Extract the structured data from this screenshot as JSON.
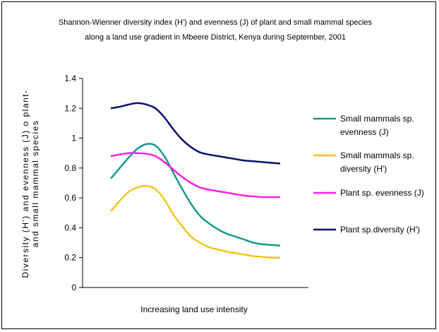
{
  "chart_data": {
    "type": "line",
    "title_lines": [
      "Shannon-Wienner diversity index (H') and evenness (J) of plant and small mammal species",
      "along a land use gradient in Mbeere District, Kenya during September, 2001"
    ],
    "xlabel": "Increasing land use intensity",
    "ylabel_lines": [
      "Diversity (H') and evenness (J) o plant-",
      "and small mammal species"
    ],
    "ylim": [
      0,
      1.4
    ],
    "yticks": [
      "0",
      "0.2",
      "0.4",
      "0.6",
      "0.8",
      "1",
      "1.2",
      "1.4"
    ],
    "yticks_values": [
      0,
      0.2,
      0.4,
      0.6,
      0.8,
      1.0,
      1.2,
      1.4
    ],
    "grid": false,
    "legend_position": "right",
    "x": [
      1,
      2,
      3,
      4,
      5,
      6,
      7,
      8,
      9,
      10,
      11,
      12,
      13,
      14,
      15,
      16,
      17,
      18,
      19,
      20
    ],
    "series": [
      {
        "name": "Small mammals sp. evenness (J)",
        "legend_lines": [
          "Small mammals sp.",
          "evenness (J)"
        ],
        "color": "#17998a",
        "values": [
          0.73,
          0.8,
          0.87,
          0.93,
          0.96,
          0.95,
          0.88,
          0.77,
          0.66,
          0.56,
          0.48,
          0.43,
          0.39,
          0.36,
          0.34,
          0.32,
          0.3,
          0.29,
          0.285,
          0.28
        ]
      },
      {
        "name": "Small mammals sp. diversity (H')",
        "legend_lines": [
          "Small mammals sp.",
          "diversity (H')"
        ],
        "color": "#f2c51c",
        "values": [
          0.51,
          0.58,
          0.64,
          0.67,
          0.68,
          0.66,
          0.59,
          0.49,
          0.41,
          0.34,
          0.3,
          0.27,
          0.255,
          0.24,
          0.23,
          0.22,
          0.21,
          0.205,
          0.2,
          0.2
        ]
      },
      {
        "name": "Plant sp. evenness (J)",
        "legend_lines": [
          "Plant sp. evenness (J)"
        ],
        "color": "#ff1fe0",
        "values": [
          0.88,
          0.89,
          0.9,
          0.9,
          0.895,
          0.88,
          0.84,
          0.79,
          0.74,
          0.7,
          0.67,
          0.655,
          0.645,
          0.635,
          0.625,
          0.615,
          0.61,
          0.605,
          0.605,
          0.605
        ]
      },
      {
        "name": "Plant sp.diversity (H')",
        "legend_lines": [
          "Plant sp.diversity (H')"
        ],
        "color": "#0a0f6e",
        "values": [
          1.2,
          1.21,
          1.225,
          1.235,
          1.225,
          1.2,
          1.14,
          1.06,
          0.99,
          0.94,
          0.905,
          0.89,
          0.88,
          0.87,
          0.86,
          0.85,
          0.845,
          0.84,
          0.835,
          0.83
        ]
      }
    ]
  }
}
